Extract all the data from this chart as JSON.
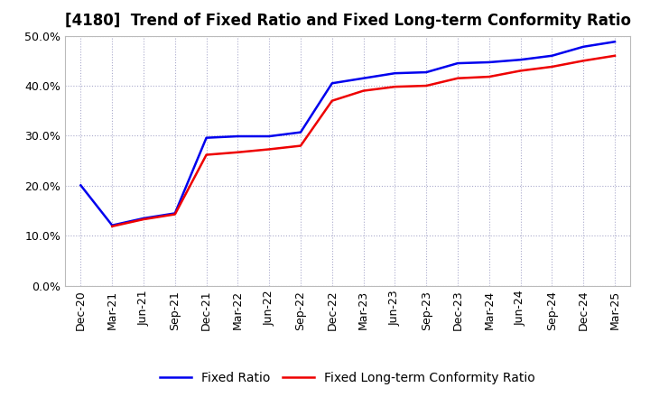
{
  "title": "[4180]  Trend of Fixed Ratio and Fixed Long-term Conformity Ratio",
  "xlabel": "",
  "ylabel": "",
  "ylim": [
    0.0,
    0.5
  ],
  "yticks": [
    0.0,
    0.1,
    0.2,
    0.3,
    0.4,
    0.5
  ],
  "background_color": "#ffffff",
  "plot_bg_color": "#ffffff",
  "grid_color": "#aaaacc",
  "fixed_ratio_color": "#0000ee",
  "fixed_lt_color": "#ee0000",
  "line_width": 1.8,
  "x_labels": [
    "Dec-20",
    "Mar-21",
    "Jun-21",
    "Sep-21",
    "Dec-21",
    "Mar-22",
    "Jun-22",
    "Sep-22",
    "Dec-22",
    "Mar-23",
    "Jun-23",
    "Sep-23",
    "Dec-23",
    "Mar-24",
    "Jun-24",
    "Sep-24",
    "Dec-24",
    "Mar-25"
  ],
  "fixed_ratio": [
    0.201,
    0.121,
    0.135,
    0.145,
    0.296,
    0.299,
    0.299,
    0.307,
    0.405,
    0.415,
    0.425,
    0.427,
    0.445,
    0.447,
    0.452,
    0.46,
    0.478,
    0.488
  ],
  "fixed_lt_ratio": [
    null,
    0.119,
    0.133,
    0.143,
    0.262,
    0.267,
    0.273,
    0.28,
    0.37,
    0.39,
    0.398,
    0.4,
    0.415,
    0.418,
    0.43,
    0.438,
    0.45,
    0.46
  ],
  "title_fontsize": 12,
  "tick_fontsize": 9,
  "legend_fontsize": 10
}
